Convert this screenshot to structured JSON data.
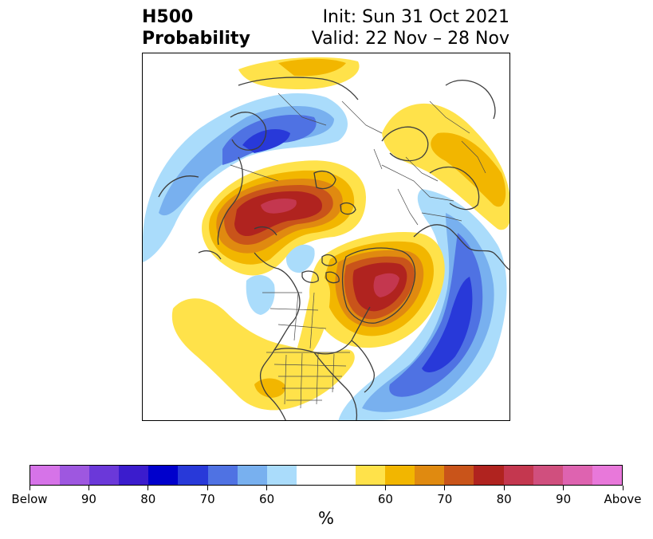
{
  "header": {
    "left_line1": "H500",
    "left_line2": "Probability",
    "right_line1": "Init: Sun 31 Oct 2021",
    "right_line2": "Valid: 22 Nov – 28 Nov"
  },
  "colorbar": {
    "colors": [
      "#d673e8",
      "#9e57e0",
      "#6b38d9",
      "#3b1ccd",
      "#0000cc",
      "#2839d9",
      "#4f72e3",
      "#78b0ef",
      "#aadcfb",
      "#ffffff",
      "#ffffff",
      "#ffe24a",
      "#f2b600",
      "#e08a10",
      "#c9541a",
      "#b0231f",
      "#c4374f",
      "#d04f7e",
      "#de63b0",
      "#e878da"
    ],
    "tick_labels": [
      "Below",
      "90",
      "80",
      "70",
      "60",
      "60",
      "70",
      "80",
      "90",
      "Above"
    ],
    "unit": "%"
  },
  "map": {
    "projection": "polar stereographic, North Pole",
    "field_colors": {
      "above_60": "#ffe24a",
      "above_65": "#f2b600",
      "above_70": "#e08a10",
      "above_75": "#c9541a",
      "above_80": "#b0231f",
      "above_85": "#c4374f",
      "below_60": "#aadcfb",
      "below_65": "#78b0ef",
      "below_70": "#4f72e3",
      "below_75": "#2839d9",
      "coast": "#3d3d3d"
    }
  }
}
